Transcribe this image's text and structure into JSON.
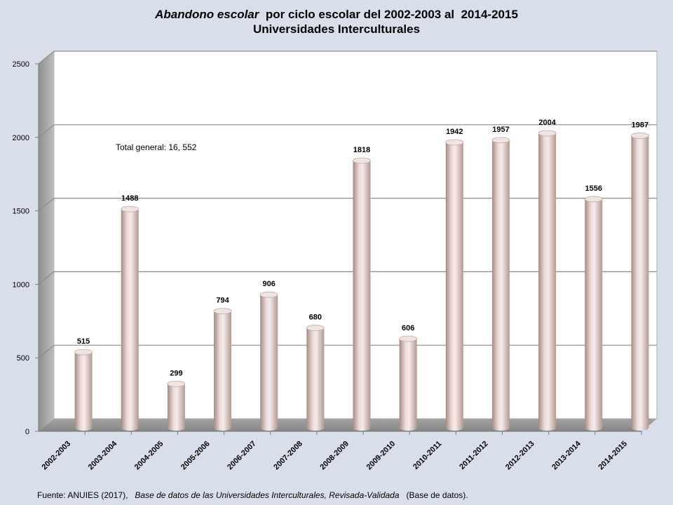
{
  "title": {
    "part1": "Abandono escolar",
    "part2": "  por ciclo escolar del 2002-2003 al  2014-2015",
    "line2": "Universidades Interculturales"
  },
  "annotation": "Total general: 16, 552",
  "footer": {
    "prefix": "Fuente: ANUIES (2017),",
    "title": "Base de datos de las Universidades  Interculturales, Revisada-Validada",
    "suffix": "(Base de datos)."
  },
  "colors": {
    "background": "#d8dfea",
    "plot_back": "#ffffff",
    "wall_side": "#a9a9a9",
    "floor": "#9a9a9a",
    "grid": "#8c8c8c",
    "bar_light": "#efe2e1",
    "bar_dark": "#a88c84"
  },
  "chart_data": {
    "type": "bar",
    "categories": [
      "2002-2003",
      "2003-2004",
      "2004-2005",
      "2005-2006",
      "2006-2007",
      "2007-2008",
      "2008-2009",
      "2009-2010",
      "2010-2011",
      "2011-2012",
      "2012-2013",
      "2013-2014",
      "2014-2015"
    ],
    "values": [
      515,
      1488,
      299,
      794,
      906,
      680,
      1818,
      606,
      1942,
      1957,
      2004,
      1556,
      1987
    ],
    "ylim": [
      0,
      2500
    ],
    "yticks": [
      0,
      500,
      1000,
      1500,
      2000,
      2500
    ],
    "grid": true,
    "style": "3d-cylinder",
    "data_labels": true
  }
}
